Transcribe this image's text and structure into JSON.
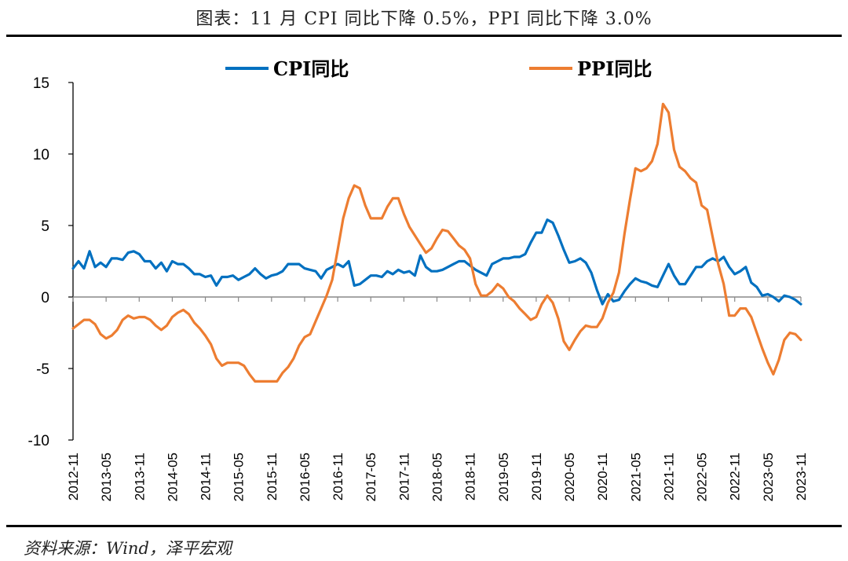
{
  "header": {
    "title": "图表：11 月 CPI 同比下降 0.5%，PPI 同比下降 3.0%"
  },
  "footer": {
    "source": "资料来源：Wind，泽平宏观"
  },
  "chart_data": {
    "type": "line",
    "title": "",
    "xlabel": "",
    "ylabel": "",
    "ylim": [
      -10,
      15
    ],
    "yticks": [
      "15",
      "10",
      "5",
      "0",
      "-5",
      "-10"
    ],
    "grid": false,
    "legend_position": "top",
    "xtick_labels": [
      "2012-11",
      "2013-05",
      "2013-11",
      "2014-05",
      "2014-11",
      "2015-05",
      "2015-11",
      "2016-05",
      "2016-11",
      "2017-05",
      "2017-11",
      "2018-05",
      "2018-11",
      "2019-05",
      "2019-11",
      "2020-05",
      "2020-11",
      "2021-05",
      "2021-11",
      "2022-05",
      "2022-11",
      "2023-05",
      "2023-11"
    ],
    "x": [
      "2012-11",
      "2012-12",
      "2013-01",
      "2013-02",
      "2013-03",
      "2013-04",
      "2013-05",
      "2013-06",
      "2013-07",
      "2013-08",
      "2013-09",
      "2013-10",
      "2013-11",
      "2013-12",
      "2014-01",
      "2014-02",
      "2014-03",
      "2014-04",
      "2014-05",
      "2014-06",
      "2014-07",
      "2014-08",
      "2014-09",
      "2014-10",
      "2014-11",
      "2014-12",
      "2015-01",
      "2015-02",
      "2015-03",
      "2015-04",
      "2015-05",
      "2015-06",
      "2015-07",
      "2015-08",
      "2015-09",
      "2015-10",
      "2015-11",
      "2015-12",
      "2016-01",
      "2016-02",
      "2016-03",
      "2016-04",
      "2016-05",
      "2016-06",
      "2016-07",
      "2016-08",
      "2016-09",
      "2016-10",
      "2016-11",
      "2016-12",
      "2017-01",
      "2017-02",
      "2017-03",
      "2017-04",
      "2017-05",
      "2017-06",
      "2017-07",
      "2017-08",
      "2017-09",
      "2017-10",
      "2017-11",
      "2017-12",
      "2018-01",
      "2018-02",
      "2018-03",
      "2018-04",
      "2018-05",
      "2018-06",
      "2018-07",
      "2018-08",
      "2018-09",
      "2018-10",
      "2018-11",
      "2018-12",
      "2019-01",
      "2019-02",
      "2019-03",
      "2019-04",
      "2019-05",
      "2019-06",
      "2019-07",
      "2019-08",
      "2019-09",
      "2019-10",
      "2019-11",
      "2019-12",
      "2020-01",
      "2020-02",
      "2020-03",
      "2020-04",
      "2020-05",
      "2020-06",
      "2020-07",
      "2020-08",
      "2020-09",
      "2020-10",
      "2020-11",
      "2020-12",
      "2021-01",
      "2021-02",
      "2021-03",
      "2021-04",
      "2021-05",
      "2021-06",
      "2021-07",
      "2021-08",
      "2021-09",
      "2021-10",
      "2021-11",
      "2021-12",
      "2022-01",
      "2022-02",
      "2022-03",
      "2022-04",
      "2022-05",
      "2022-06",
      "2022-07",
      "2022-08",
      "2022-09",
      "2022-10",
      "2022-11",
      "2022-12",
      "2023-01",
      "2023-02",
      "2023-03",
      "2023-04",
      "2023-05",
      "2023-06",
      "2023-07",
      "2023-08",
      "2023-09",
      "2023-10",
      "2023-11"
    ],
    "series": [
      {
        "name": "CPI同比",
        "color": "#0070C0",
        "values": [
          2.0,
          2.5,
          2.0,
          3.2,
          2.1,
          2.4,
          2.1,
          2.7,
          2.7,
          2.6,
          3.1,
          3.2,
          3.0,
          2.5,
          2.5,
          2.0,
          2.4,
          1.8,
          2.5,
          2.3,
          2.3,
          2.0,
          1.6,
          1.6,
          1.4,
          1.5,
          0.8,
          1.4,
          1.4,
          1.5,
          1.2,
          1.4,
          1.6,
          2.0,
          1.6,
          1.3,
          1.5,
          1.6,
          1.8,
          2.3,
          2.3,
          2.3,
          2.0,
          1.9,
          1.8,
          1.3,
          1.9,
          2.1,
          2.3,
          2.1,
          2.5,
          0.8,
          0.9,
          1.2,
          1.5,
          1.5,
          1.4,
          1.8,
          1.6,
          1.9,
          1.7,
          1.8,
          1.5,
          2.9,
          2.1,
          1.8,
          1.8,
          1.9,
          2.1,
          2.3,
          2.5,
          2.5,
          2.2,
          1.9,
          1.7,
          1.5,
          2.3,
          2.5,
          2.7,
          2.7,
          2.8,
          2.8,
          3.0,
          3.8,
          4.5,
          4.5,
          5.4,
          5.2,
          4.3,
          3.3,
          2.4,
          2.5,
          2.7,
          2.4,
          1.7,
          0.5,
          -0.5,
          0.2,
          -0.3,
          -0.2,
          0.4,
          0.9,
          1.3,
          1.1,
          1.0,
          0.8,
          0.7,
          1.5,
          2.3,
          1.5,
          0.9,
          0.9,
          1.5,
          2.1,
          2.1,
          2.5,
          2.7,
          2.5,
          2.8,
          2.1,
          1.6,
          1.8,
          2.1,
          1.0,
          0.7,
          0.1,
          0.2,
          0.0,
          -0.3,
          0.1,
          0.0,
          -0.2,
          -0.5
        ]
      },
      {
        "name": "PPI同比",
        "color": "#ED7D31",
        "values": [
          -2.2,
          -1.9,
          -1.6,
          -1.6,
          -1.9,
          -2.6,
          -2.9,
          -2.7,
          -2.3,
          -1.6,
          -1.3,
          -1.5,
          -1.4,
          -1.4,
          -1.6,
          -2.0,
          -2.3,
          -2.0,
          -1.4,
          -1.1,
          -0.9,
          -1.2,
          -1.8,
          -2.2,
          -2.7,
          -3.3,
          -4.3,
          -4.8,
          -4.6,
          -4.6,
          -4.6,
          -4.8,
          -5.4,
          -5.9,
          -5.9,
          -5.9,
          -5.9,
          -5.9,
          -5.3,
          -4.9,
          -4.3,
          -3.4,
          -2.8,
          -2.6,
          -1.7,
          -0.8,
          0.1,
          1.2,
          3.3,
          5.5,
          6.9,
          7.8,
          7.6,
          6.4,
          5.5,
          5.5,
          5.5,
          6.3,
          6.9,
          6.9,
          5.8,
          4.9,
          4.3,
          3.7,
          3.1,
          3.4,
          4.1,
          4.7,
          4.6,
          4.1,
          3.6,
          3.3,
          2.7,
          0.9,
          0.1,
          0.1,
          0.4,
          0.9,
          0.6,
          0.0,
          -0.3,
          -0.8,
          -1.2,
          -1.6,
          -1.4,
          -0.5,
          0.1,
          -0.4,
          -1.5,
          -3.1,
          -3.7,
          -3.0,
          -2.4,
          -2.0,
          -2.1,
          -2.1,
          -1.5,
          -0.4,
          0.3,
          1.7,
          4.4,
          6.8,
          9.0,
          8.8,
          9.0,
          9.5,
          10.7,
          13.5,
          12.9,
          10.3,
          9.1,
          8.8,
          8.3,
          8.0,
          6.4,
          6.1,
          4.2,
          2.3,
          0.9,
          -1.3,
          -1.3,
          -0.8,
          -0.8,
          -1.4,
          -2.5,
          -3.6,
          -4.6,
          -5.4,
          -4.4,
          -3.0,
          -2.5,
          -2.6,
          -3.0
        ]
      }
    ]
  }
}
